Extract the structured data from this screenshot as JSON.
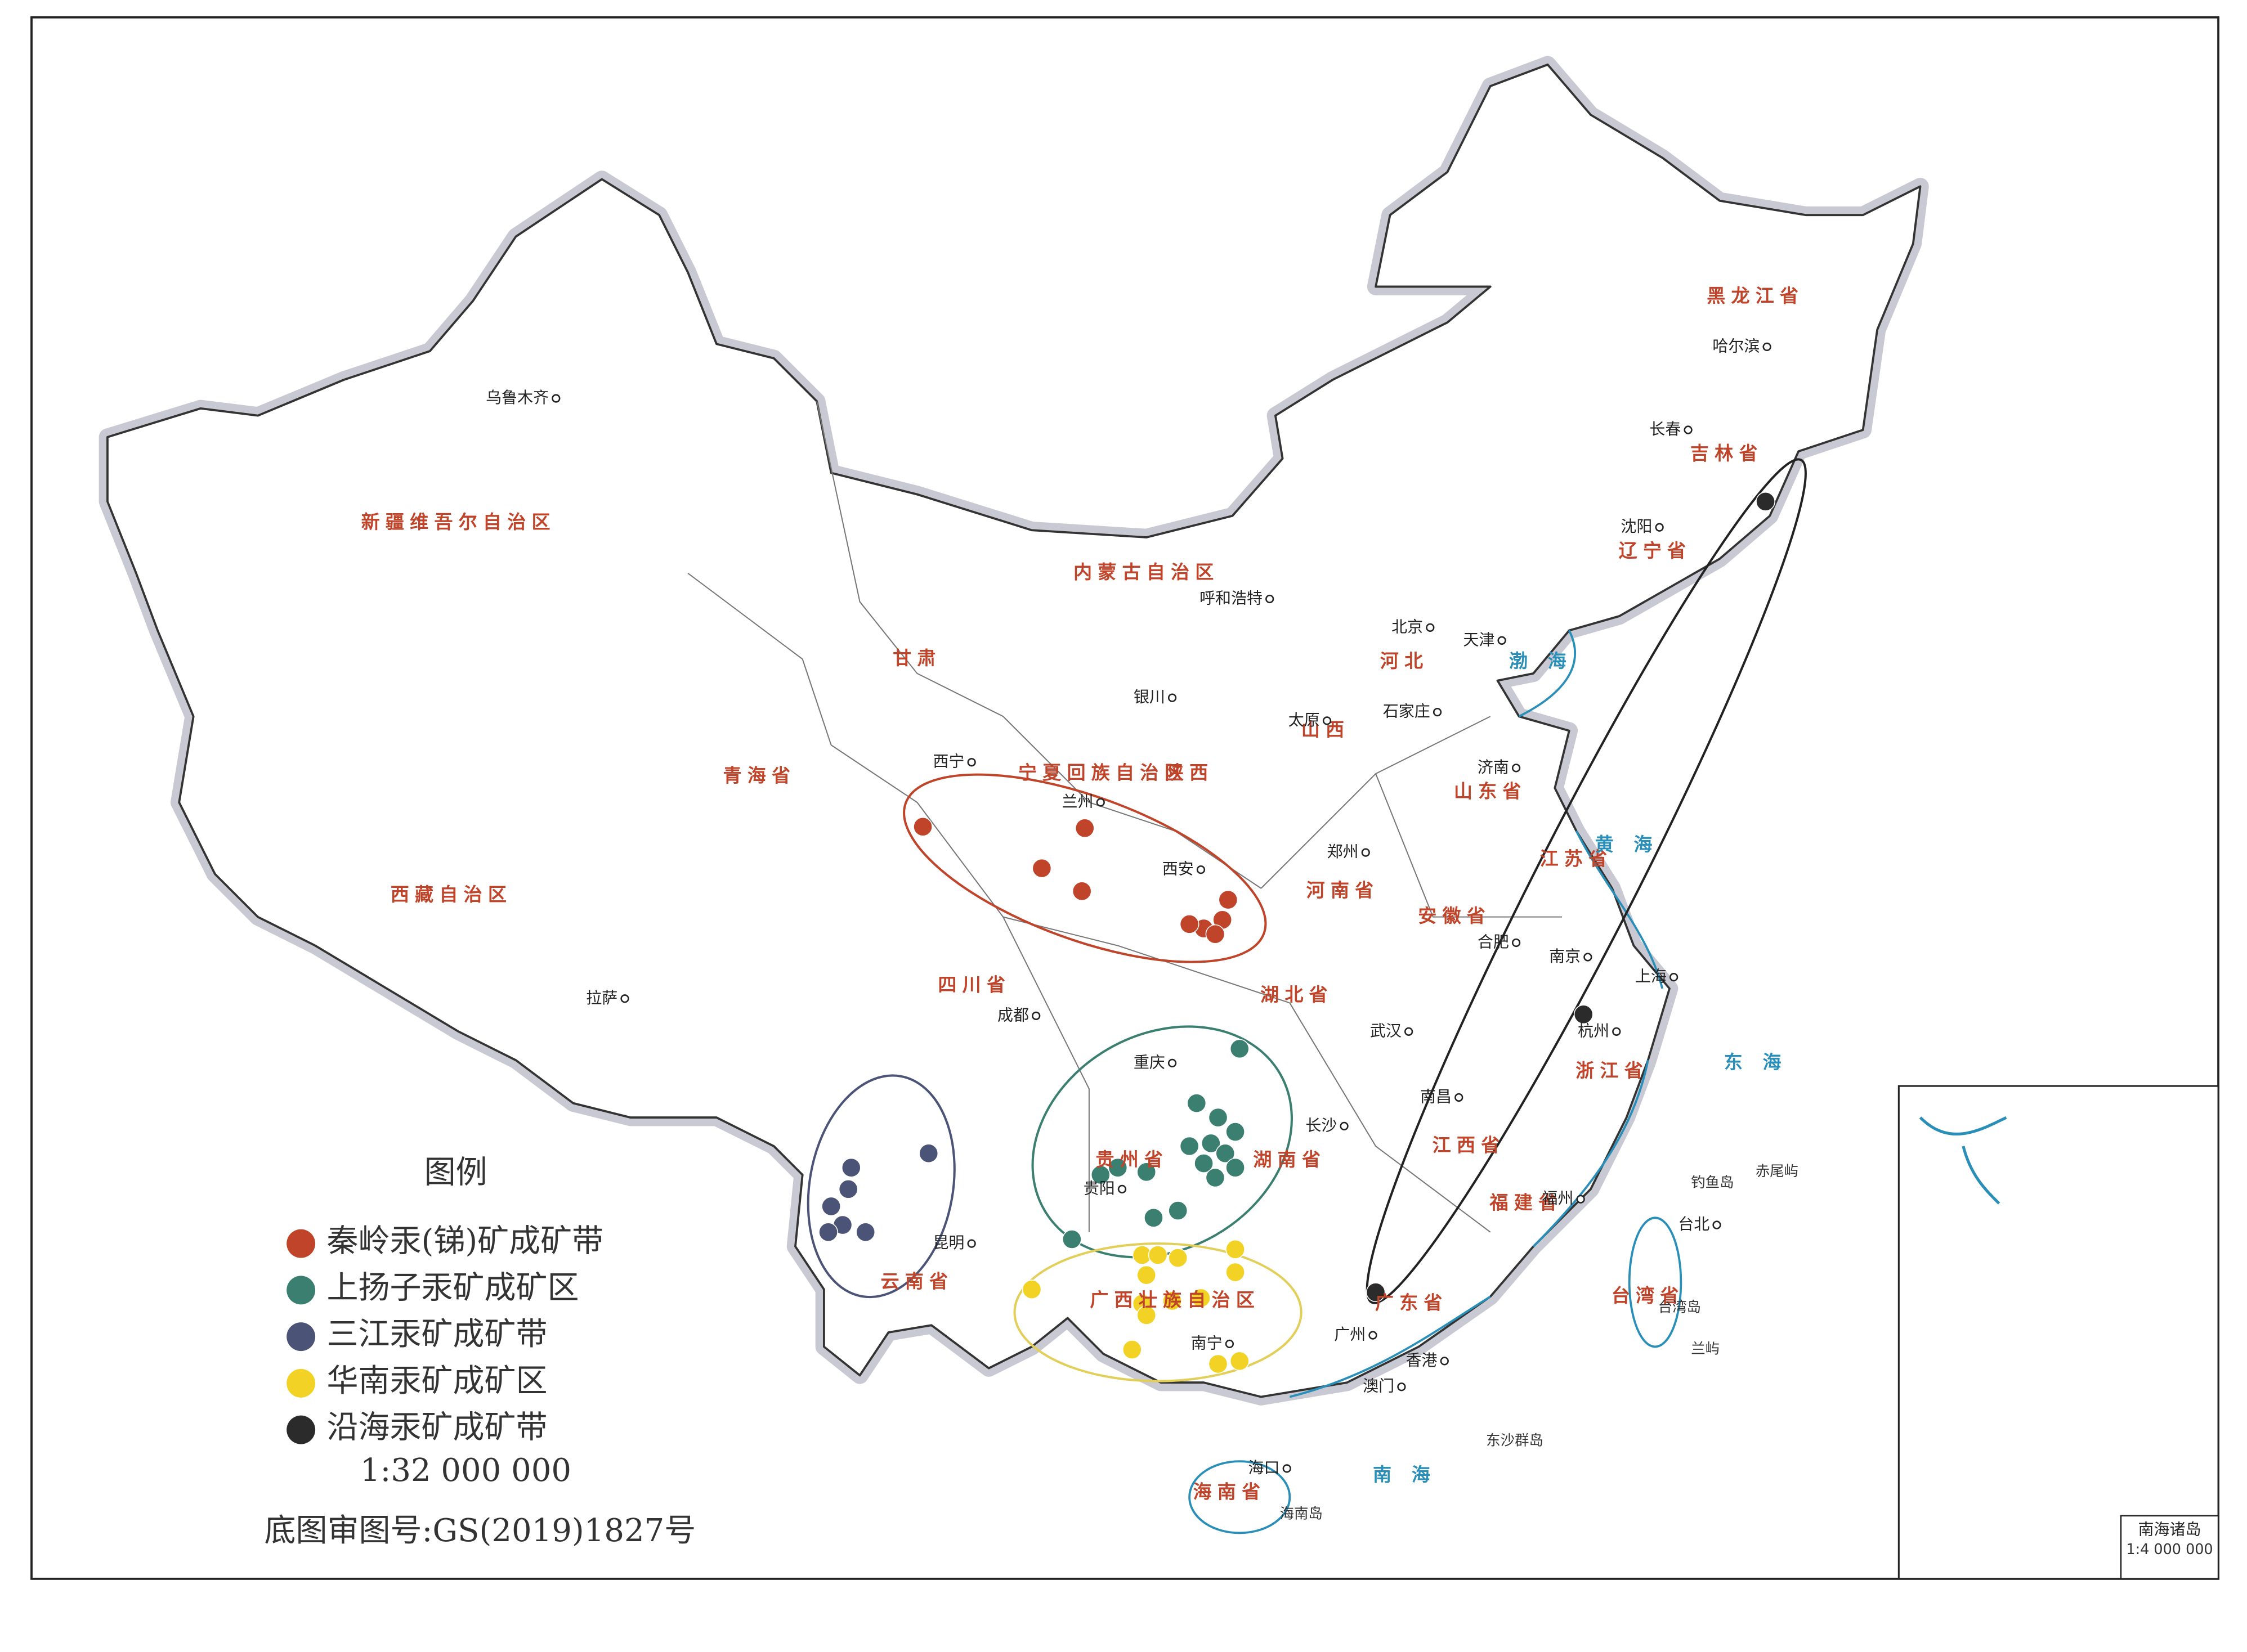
{
  "legend": {
    "title": "图例",
    "items": [
      "秦岭汞(锑)矿成矿带",
      "上扬子汞矿成矿区",
      "三江汞矿成矿带",
      "华南汞矿成矿区",
      "沿海汞矿成矿带"
    ],
    "scale": "1:32 000 000",
    "review_no": "底图审图号:GS(2019)1827号"
  },
  "provinces": [
    "新疆维吾尔自治区",
    "西藏自治区",
    "青海省",
    "甘肃",
    "四川省",
    "云南省",
    "内蒙古自治区",
    "黑龙江省",
    "吉林省",
    "辽宁省",
    "河北",
    "山西",
    "陕西",
    "河南省",
    "山东省",
    "湖北省",
    "湖南省",
    "江西省",
    "安徽省",
    "江苏省",
    "浙江省",
    "福建省",
    "广东省",
    "广西壮族自治区",
    "贵州省",
    "宁夏回族自治区",
    "台湾省",
    "海南省"
  ],
  "cities": [
    "乌鲁木齐",
    "拉萨",
    "西宁",
    "兰州",
    "银川",
    "呼和浩特",
    "太原",
    "石家庄",
    "北京",
    "天津",
    "济南",
    "郑州",
    "西安",
    "成都",
    "重庆",
    "武汉",
    "合肥",
    "南京",
    "上海",
    "杭州",
    "长沙",
    "南昌",
    "贵阳",
    "昆明",
    "南宁",
    "广州",
    "福州",
    "台北",
    "海口",
    "哈尔滨",
    "长春",
    "沈阳",
    "香港",
    "澳门"
  ],
  "seas": [
    "渤海",
    "黄海",
    "东海",
    "南海"
  ],
  "islands": [
    "钓鱼岛",
    "赤尾屿",
    "台湾岛",
    "兰屿",
    "东沙群岛",
    "海南岛"
  ],
  "inset": {
    "title": "南海诸岛",
    "scale": "1:4 000 000"
  }
}
